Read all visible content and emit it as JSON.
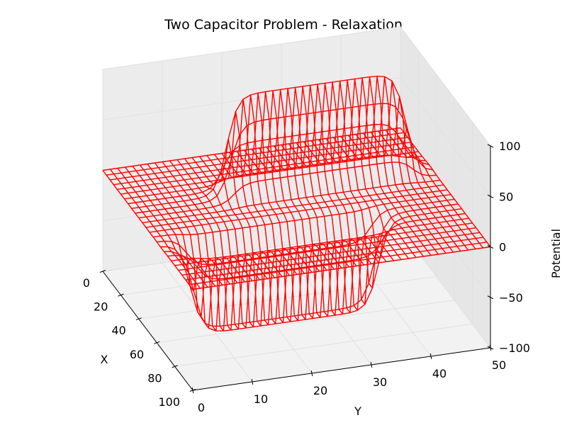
{
  "chart_data": {
    "type": "surface-wireframe",
    "title": "Two Capacitor Problem - Relaxation",
    "xlabel": "X",
    "ylabel": "Y",
    "zlabel": "Potential",
    "xlim": [
      0,
      100
    ],
    "ylim": [
      0,
      50
    ],
    "zlim": [
      -100,
      100
    ],
    "x_ticks": [
      "0",
      "20",
      "40",
      "60",
      "80",
      "100"
    ],
    "y_ticks": [
      "0",
      "10",
      "20",
      "30",
      "40",
      "50"
    ],
    "z_ticks": [
      "−100",
      "−50",
      "0",
      "50",
      "100"
    ],
    "grid": true,
    "wire_color": "#ff0000",
    "surface": {
      "x_range": [
        0,
        100
      ],
      "y_range": [
        0,
        50
      ],
      "plate_high": {
        "potential": 100,
        "x": 33,
        "y_range": [
          16,
          46
        ]
      },
      "plate_low": {
        "potential": -100,
        "x": 66,
        "y_range": [
          5,
          36
        ]
      },
      "boundary_potential": 0
    }
  }
}
